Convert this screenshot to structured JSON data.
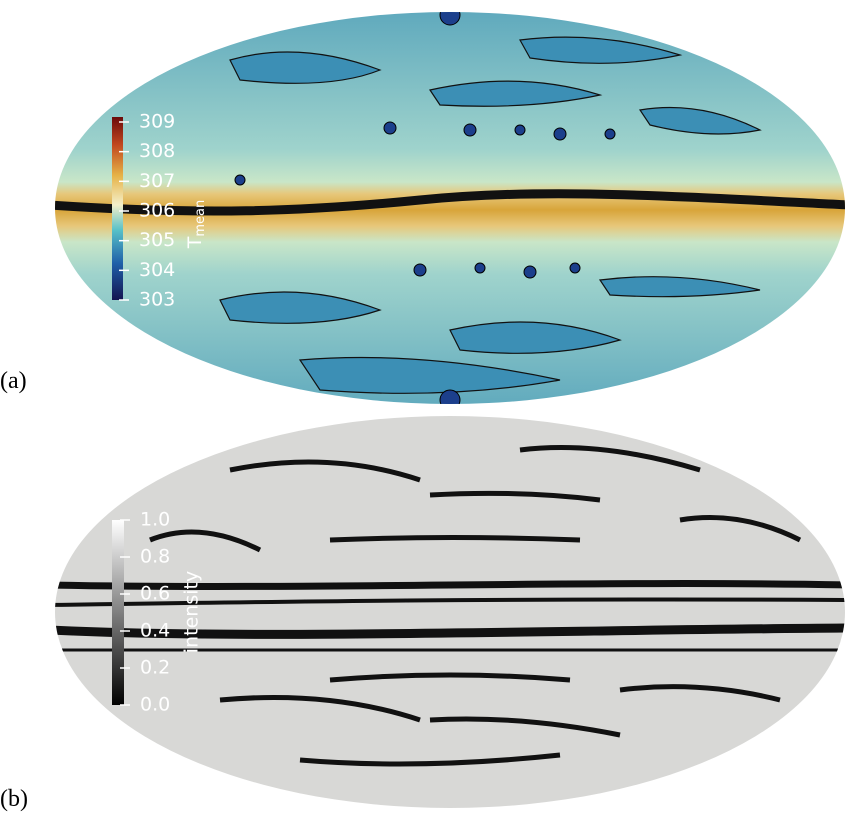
{
  "panels": [
    {
      "label": "(a)",
      "colorbar": {
        "ticks": [
          "309",
          "308",
          "307",
          "306",
          "305",
          "304",
          "303"
        ],
        "title": {
          "main": "T",
          "sub": "mean"
        }
      }
    },
    {
      "label": "(b)",
      "colorbar": {
        "ticks": [
          "1.0",
          "0.8",
          "0.6",
          "0.4",
          "0.2",
          "0.0"
        ],
        "title": "intensity"
      }
    }
  ]
}
